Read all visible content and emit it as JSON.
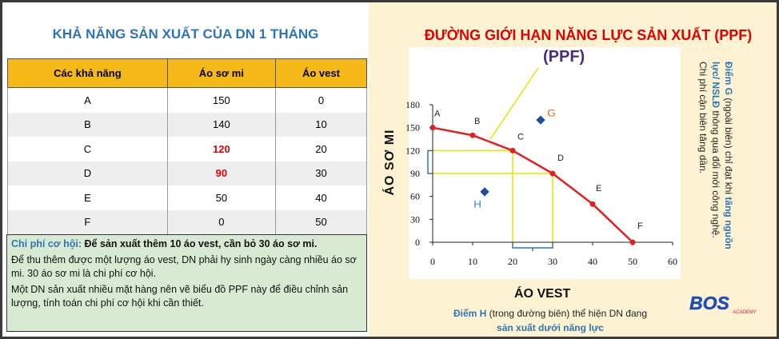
{
  "left": {
    "title": "KHẢ NĂNG SẢN XUẤT CỦA DN 1 THÁNG",
    "table": {
      "headers": [
        "Các khả năng",
        "Áo sơ mi",
        "Áo vest"
      ],
      "rows": [
        [
          "A",
          "150",
          "0"
        ],
        [
          "B",
          "140",
          "10"
        ],
        [
          "C",
          "120",
          "20"
        ],
        [
          "D",
          "90",
          "30"
        ],
        [
          "E",
          "50",
          "40"
        ],
        [
          "F",
          "0",
          "50"
        ]
      ]
    },
    "note": {
      "line1_label": "Chi phí cơ hội:",
      "line1_text": " Để sản xuất thêm 10 áo vest, cần bỏ 30 áo sơ mi.",
      "para2": "Để thu thêm được một lượng áo vest, DN phải hy sinh ngày càng nhiều áo sơ mi. 30 áo sơ mi là chi phí cơ hội.",
      "para3": "Một DN sản xuất nhiều mặt hàng nên vẽ biểu đồ PPF này để điều chỉnh sản lượng, tính toán chi phí cơ hội khi cần thiết."
    }
  },
  "right": {
    "title": "ĐƯỜNG GIỚI HẠN NĂNG LỰC SẢN XUẤT (PPF)",
    "ppf_label": "(PPF)",
    "side_note": {
      "label": "Điểm G",
      "text1": " (ngoài biên) chỉ đạt khi ",
      "highlight": "tăng nguồn lực/ NSLĐ",
      "text2": " thông qua đổi mới công nghệ. Chi phí cận biên tăng dần."
    },
    "footer": {
      "label": "Điểm H",
      "text": " (trong đường biên) thể hiện DN đang",
      "line2": "sản xuất dưới năng lực"
    },
    "logo_text": "BOS",
    "logo_sub": "ACADEMY"
  },
  "chart_data": {
    "type": "line",
    "xlabel": "ÁO VEST",
    "ylabel": "ÁO SƠ MI",
    "xlim": [
      0,
      60
    ],
    "ylim": [
      0,
      180
    ],
    "xticks": [
      "0",
      "10",
      "20",
      "30",
      "40",
      "50",
      "60"
    ],
    "yticks": [
      "0",
      "30",
      "60",
      "90",
      "120",
      "150",
      "180"
    ],
    "series": [
      {
        "name": "PPF",
        "points": [
          {
            "label": "A",
            "x": 0,
            "y": 150
          },
          {
            "label": "B",
            "x": 10,
            "y": 140
          },
          {
            "label": "C",
            "x": 20,
            "y": 120
          },
          {
            "label": "D",
            "x": 30,
            "y": 90
          },
          {
            "label": "E",
            "x": 40,
            "y": 50
          },
          {
            "label": "F",
            "x": 50,
            "y": 0
          }
        ]
      }
    ],
    "extra_points": [
      {
        "label": "G",
        "x": 27,
        "y": 160
      },
      {
        "label": "H",
        "x": 13,
        "y": 66
      }
    ],
    "grid": false,
    "colors": {
      "curve": "#e32020",
      "guide": "#e5e500",
      "accent": "#2e75b6",
      "extra_label": "#e87722"
    }
  }
}
